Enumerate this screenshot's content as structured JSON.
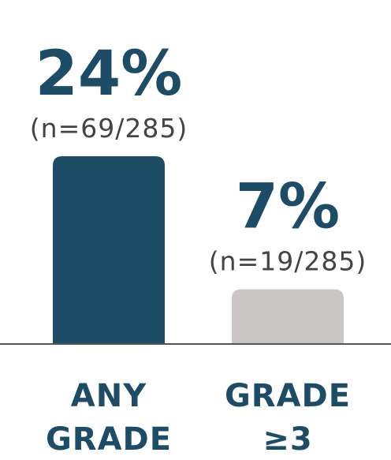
{
  "colors": {
    "primary": "#1d4d66",
    "secondary": "#c9c6c5",
    "axis": "#555555",
    "text_primary": "#1d4d66",
    "text_secondary": "#444444"
  },
  "chart_data": {
    "type": "bar",
    "categories": [
      "ANY GRADE",
      "GRADE ≥3"
    ],
    "category_lines": [
      [
        "ANY",
        "GRADE"
      ],
      [
        "GRADE",
        "≥3"
      ]
    ],
    "values": [
      24,
      7
    ],
    "value_labels": [
      "24%",
      "7%"
    ],
    "count_labels": [
      "(n=69/285)",
      "(n=19/285)"
    ],
    "bar_colors": [
      "#1d4d66",
      "#c9c6c5"
    ],
    "title": "",
    "xlabel": "",
    "ylabel": "",
    "ylim": [
      0,
      30
    ],
    "grid": false,
    "legend": "none"
  }
}
